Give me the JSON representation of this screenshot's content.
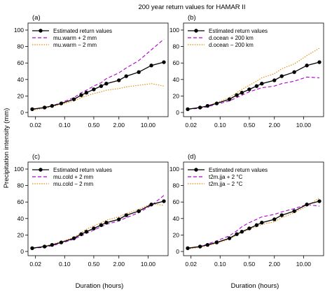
{
  "title": "200 year return values for HAMAR II",
  "ylabel": "Precipitation intensity (mm)",
  "xlabel": "Duration (hours)",
  "colors": {
    "estimate": "#000000",
    "plus": "#b000d0",
    "minus": "#e08a00"
  },
  "chart_data": [
    {
      "type": "line",
      "panel_label": "(a)",
      "x": [
        0.0167,
        0.033,
        0.05,
        0.083,
        0.167,
        0.25,
        0.333,
        0.5,
        0.75,
        1,
        2,
        3,
        6,
        12,
        24
      ],
      "xscale": "log",
      "xticks": [
        "0.02",
        "0.10",
        "0.50",
        "2.00",
        "10.00"
      ],
      "ylim": [
        0,
        100
      ],
      "yticks": [
        0,
        20,
        40,
        60,
        80,
        100
      ],
      "legend_position": "top-left",
      "series": [
        {
          "name": "Estimated return values",
          "style": "points-line",
          "values": [
            4,
            6,
            8,
            11,
            16,
            21,
            24,
            28,
            32,
            35,
            39,
            44,
            49,
            57,
            61
          ]
        },
        {
          "name": "mu.warm + 2 mm",
          "style": "dashed",
          "values": [
            4,
            6,
            8,
            12,
            18,
            24,
            27,
            32,
            36,
            41,
            48,
            54,
            63,
            76,
            89
          ]
        },
        {
          "name": "mu.warm − 2 mm",
          "style": "dotted",
          "values": [
            3,
            5,
            7,
            10,
            14,
            18,
            20,
            23,
            25,
            27,
            29,
            31,
            33,
            35,
            32
          ]
        }
      ]
    },
    {
      "type": "line",
      "panel_label": "(b)",
      "x": [
        0.0167,
        0.033,
        0.05,
        0.083,
        0.167,
        0.25,
        0.333,
        0.5,
        0.75,
        1,
        2,
        3,
        6,
        12,
        24
      ],
      "xscale": "log",
      "xticks": [
        "0.02",
        "0.10",
        "0.50",
        "2.00",
        "10.00"
      ],
      "ylim": [
        0,
        100
      ],
      "yticks": [
        0,
        20,
        40,
        60,
        80,
        100
      ],
      "legend_position": "top-left",
      "series": [
        {
          "name": "Estimated return values",
          "style": "points-line",
          "values": [
            4,
            6,
            8,
            11,
            16,
            21,
            24,
            28,
            32,
            35,
            39,
            44,
            49,
            57,
            61
          ]
        },
        {
          "name": "d.ocean + 200 km",
          "style": "dashed",
          "values": [
            4,
            5,
            7,
            10,
            14,
            18,
            21,
            25,
            28,
            30,
            32,
            35,
            38,
            43,
            42
          ]
        },
        {
          "name": "d.ocean − 200 km",
          "style": "dotted",
          "values": [
            4,
            6,
            8,
            12,
            18,
            24,
            28,
            33,
            38,
            42,
            47,
            53,
            59,
            69,
            78
          ]
        }
      ]
    },
    {
      "type": "line",
      "panel_label": "(c)",
      "x": [
        0.0167,
        0.033,
        0.05,
        0.083,
        0.167,
        0.25,
        0.333,
        0.5,
        0.75,
        1,
        2,
        3,
        6,
        12,
        24
      ],
      "xscale": "log",
      "xticks": [
        "0.02",
        "0.10",
        "0.50",
        "2.00",
        "10.00"
      ],
      "ylim": [
        0,
        100
      ],
      "yticks": [
        0,
        20,
        40,
        60,
        80,
        100
      ],
      "legend_position": "top-left",
      "series": [
        {
          "name": "Estimated return values",
          "style": "points-line",
          "values": [
            4,
            6,
            8,
            11,
            16,
            21,
            24,
            28,
            32,
            35,
            39,
            44,
            49,
            57,
            61
          ]
        },
        {
          "name": "mu.cold + 2 mm",
          "style": "dashed",
          "values": [
            4,
            5,
            7,
            10,
            15,
            19,
            22,
            26,
            30,
            33,
            37,
            41,
            47,
            56,
            68
          ]
        },
        {
          "name": "mu.cold − 2 mm",
          "style": "dotted",
          "values": [
            4,
            6,
            9,
            12,
            17,
            23,
            27,
            31,
            35,
            38,
            42,
            46,
            51,
            58,
            56
          ]
        }
      ]
    },
    {
      "type": "line",
      "panel_label": "(d)",
      "x": [
        0.0167,
        0.033,
        0.05,
        0.083,
        0.167,
        0.25,
        0.333,
        0.5,
        0.75,
        1,
        2,
        3,
        6,
        12,
        24
      ],
      "xscale": "log",
      "xticks": [
        "0.02",
        "0.10",
        "0.50",
        "2.00",
        "10.00"
      ],
      "ylim": [
        0,
        100
      ],
      "yticks": [
        0,
        20,
        40,
        60,
        80,
        100
      ],
      "legend_position": "top-left",
      "series": [
        {
          "name": "Estimated return values",
          "style": "points-line",
          "values": [
            4,
            6,
            8,
            11,
            16,
            21,
            24,
            28,
            32,
            35,
            39,
            44,
            49,
            57,
            61
          ]
        },
        {
          "name": "t2m.jja + 2 °C",
          "style": "dashed",
          "values": [
            4,
            6,
            9,
            13,
            19,
            25,
            30,
            35,
            39,
            42,
            45,
            48,
            52,
            57,
            55
          ]
        },
        {
          "name": "t2m.jja − 2 °C",
          "style": "dotted",
          "values": [
            3,
            5,
            7,
            10,
            15,
            20,
            23,
            27,
            30,
            33,
            36,
            41,
            47,
            55,
            65
          ]
        }
      ]
    }
  ]
}
